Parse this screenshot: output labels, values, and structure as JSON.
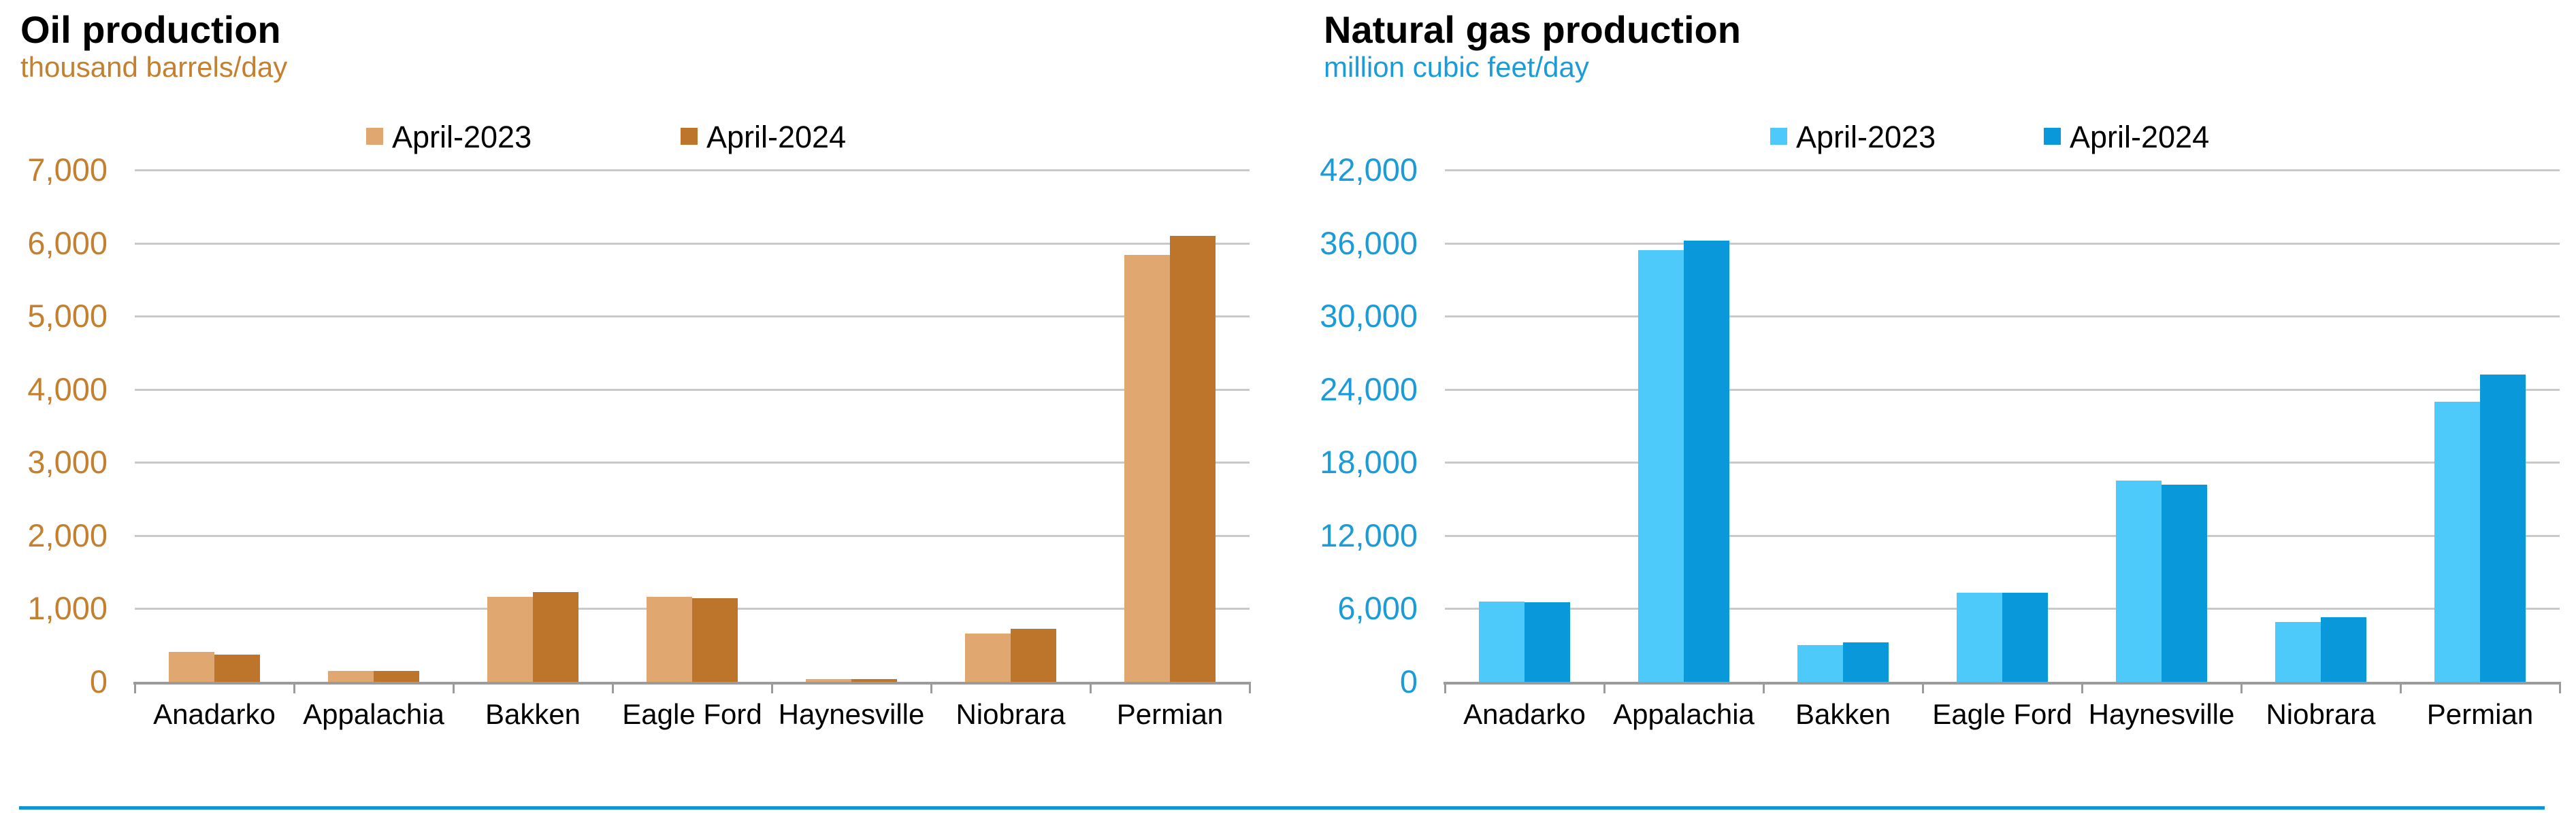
{
  "page": {
    "background": "#FFFFFF",
    "gridline_color": "#C9C9C9",
    "axis_color": "#9B9B9B",
    "footer_rule_color": "#1193D6",
    "title_color": "#000000"
  },
  "chart_data": [
    {
      "type": "bar",
      "id": "oil",
      "title": "Oil production",
      "subtitle": "thousand barrels/day",
      "unit": "thousand barrels/day",
      "accent_color": "#C4802F",
      "categories": [
        "Anadarko",
        "Appalachia",
        "Bakken",
        "Eagle Ford",
        "Haynesville",
        "Niobrara",
        "Permian"
      ],
      "series": [
        {
          "name": "April-2023",
          "color": "#E0A770",
          "values": [
            410,
            145,
            1165,
            1160,
            35,
            660,
            5840
          ]
        },
        {
          "name": "April-2024",
          "color": "#BD752C",
          "values": [
            375,
            150,
            1230,
            1145,
            35,
            725,
            6100
          ]
        }
      ],
      "ylim": [
        0,
        7000
      ],
      "ytick_step": 1000,
      "ytick_labels": [
        "0",
        "1,000",
        "2,000",
        "3,000",
        "4,000",
        "5,000",
        "6,000",
        "7,000"
      ],
      "xlabel": "",
      "ylabel": "",
      "grid": true,
      "legend_position": "top"
    },
    {
      "type": "bar",
      "id": "gas",
      "title": "Natural gas production",
      "subtitle": "million cubic feet/day",
      "unit": "million cubic feet/day",
      "accent_color": "#1C9BD9",
      "categories": [
        "Anadarko",
        "Appalachia",
        "Bakken",
        "Eagle Ford",
        "Haynesville",
        "Niobrara",
        "Permian"
      ],
      "series": [
        {
          "name": "April-2023",
          "color": "#4DC9FA",
          "values": [
            6600,
            35400,
            3000,
            7300,
            16500,
            4900,
            23000
          ]
        },
        {
          "name": "April-2024",
          "color": "#0999DB",
          "values": [
            6500,
            36200,
            3250,
            7300,
            16200,
            5300,
            25200
          ]
        }
      ],
      "ylim": [
        0,
        42000
      ],
      "ytick_step": 6000,
      "ytick_labels": [
        "0",
        "6,000",
        "12,000",
        "18,000",
        "24,000",
        "30,000",
        "36,000",
        "42,000"
      ],
      "xlabel": "",
      "ylabel": "",
      "grid": true,
      "legend_position": "top"
    }
  ]
}
